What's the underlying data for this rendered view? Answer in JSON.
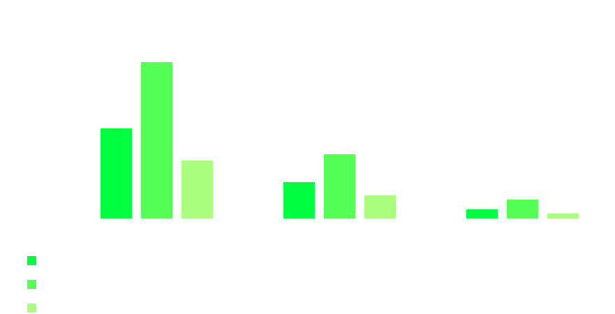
{
  "chart_data": {
    "type": "bar",
    "title": "",
    "xlabel": "",
    "ylabel": "",
    "categories": [
      "",
      "",
      ""
    ],
    "ylim": [
      0,
      250
    ],
    "grid": false,
    "legend_placement": "bottom-left",
    "series": [
      {
        "values": [
          129,
          52,
          13
        ],
        "color": "#00ff40"
      },
      {
        "values": [
          224,
          92,
          27
        ],
        "color": "#55ff55"
      },
      {
        "values": [
          83,
          33,
          7
        ],
        "color": "#aaff80"
      }
    ]
  }
}
